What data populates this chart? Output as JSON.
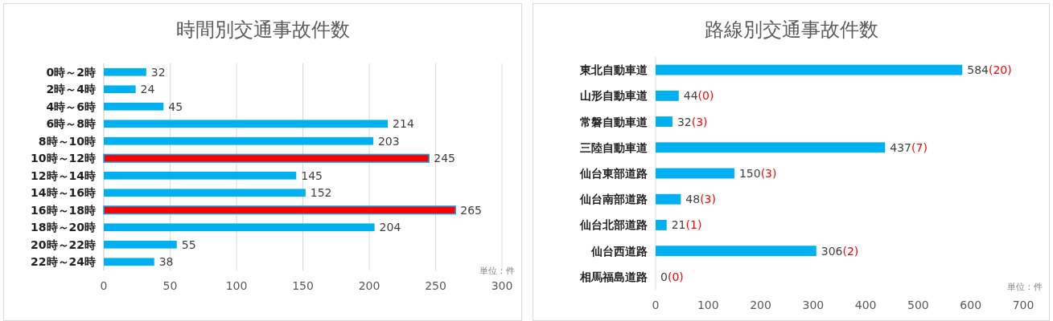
{
  "chart_data": [
    {
      "type": "bar",
      "orientation": "horizontal",
      "title": "時間別交通事故件数",
      "categories": [
        "0時～2時",
        "2時～4時",
        "4時～6時",
        "6時～8時",
        "8時～10時",
        "10時～12時",
        "12時～14時",
        "14時～16時",
        "16時～18時",
        "18時～20時",
        "20時～22時",
        "22時～24時"
      ],
      "values": [
        32,
        24,
        45,
        214,
        203,
        245,
        145,
        152,
        265,
        204,
        55,
        38
      ],
      "colors": [
        "#00b0f0",
        "#00b0f0",
        "#00b0f0",
        "#00b0f0",
        "#00b0f0",
        "#ff0000",
        "#00b0f0",
        "#00b0f0",
        "#ff0000",
        "#00b0f0",
        "#00b0f0",
        "#00b0f0"
      ],
      "xlim": [
        0,
        300
      ],
      "xticks": [
        0,
        50,
        100,
        150,
        200,
        250,
        300
      ],
      "grid": "x",
      "data_labels": true,
      "annotations": [
        "単位：件"
      ]
    },
    {
      "type": "bar",
      "orientation": "horizontal",
      "title": "路線別交通事故件数",
      "categories": [
        "東北自動車道",
        "山形自動車道",
        "常磐自動車道",
        "三陸自動車道",
        "仙台東部道路",
        "仙台南部道路",
        "仙台北部道路",
        "仙台西道路",
        "相馬福島道路"
      ],
      "values": [
        584,
        44,
        32,
        437,
        150,
        48,
        21,
        306,
        0
      ],
      "value_labels": [
        "584(20)",
        "44(0)",
        "32(3)",
        "437(7)",
        "150(3)",
        "48(3)",
        "21(1)",
        "306(2)",
        "0(0)"
      ],
      "color": "#00b0f0",
      "xlim": [
        0,
        700
      ],
      "xticks": [
        0,
        100,
        200,
        300,
        400,
        500,
        600,
        700
      ],
      "annotations": [
        "単位：件"
      ]
    }
  ]
}
